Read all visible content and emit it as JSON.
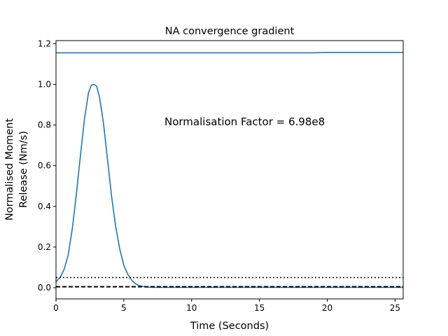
{
  "chart_data": {
    "type": "line",
    "title": "NA convergence gradient",
    "xlabel": "Time (Seconds)",
    "ylabel_lines": [
      "Normalised Moment",
      "Release (Nm/s)"
    ],
    "annotation": "Normalisation Factor = 6.98e8",
    "xlim": [
      0,
      25.6
    ],
    "ylim": [
      -0.055,
      1.215
    ],
    "xticks": [
      0,
      5,
      10,
      15,
      20,
      25
    ],
    "yticks": [
      0.0,
      0.2,
      0.4,
      0.6,
      0.8,
      1.0,
      1.2
    ],
    "xtick_labels": [
      "0",
      "5",
      "10",
      "15",
      "20",
      "25"
    ],
    "ytick_labels": [
      "0.0",
      "0.2",
      "0.4",
      "0.6",
      "0.8",
      "1.0",
      "1.2"
    ],
    "grid": false,
    "colors": {
      "series": "#1f77b4",
      "reference": "#000000"
    },
    "series": [
      {
        "style": "solid",
        "x": [
          0,
          0.3,
          0.6,
          0.9,
          1.2,
          1.5,
          1.8,
          2.1,
          2.4,
          2.6,
          2.8,
          3.0,
          3.2,
          3.5,
          3.8,
          4.1,
          4.4,
          4.7,
          5.0,
          5.3,
          5.6,
          5.9,
          6.2,
          6.5,
          6.8,
          7.2,
          8.0,
          10,
          15,
          20,
          25.6
        ],
        "y": [
          0.03,
          0.05,
          0.09,
          0.16,
          0.29,
          0.46,
          0.65,
          0.83,
          0.96,
          0.995,
          1.0,
          0.99,
          0.94,
          0.81,
          0.63,
          0.45,
          0.3,
          0.19,
          0.11,
          0.065,
          0.035,
          0.018,
          0.009,
          0.005,
          0.003,
          0.002,
          0.002,
          0.002,
          0.002,
          0.002,
          0.002
        ]
      },
      {
        "style": "solid",
        "x": [
          0,
          5,
          10,
          15,
          19,
          20,
          25,
          25.6
        ],
        "y": [
          1.155,
          1.155,
          1.155,
          1.155,
          1.155,
          1.157,
          1.157,
          1.157
        ]
      },
      {
        "style": "dotted",
        "x": [
          0,
          25.6
        ],
        "y": [
          0.05,
          0.05
        ]
      },
      {
        "style": "dashed",
        "x": [
          0,
          25.6
        ],
        "y": [
          0.005,
          0.005
        ]
      }
    ]
  }
}
